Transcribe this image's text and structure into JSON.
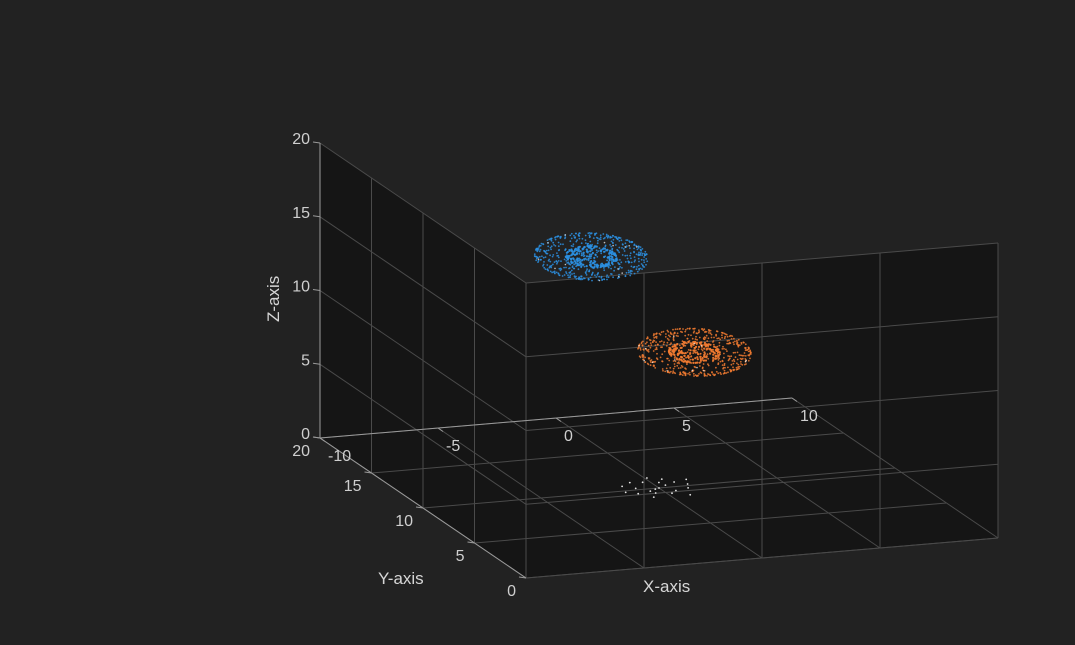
{
  "chart_data": {
    "type": "scatter",
    "projection": "3d",
    "title": "",
    "xlabel": "X-axis",
    "ylabel": "Y-axis",
    "zlabel": "Z-axis",
    "xlim": [
      -10,
      10
    ],
    "ylim": [
      0,
      20
    ],
    "zlim": [
      0,
      20
    ],
    "x_ticks": [
      "-10",
      "-5",
      "0",
      "5",
      "10"
    ],
    "y_ticks": [
      "0",
      "5",
      "10",
      "15",
      "20"
    ],
    "z_ticks": [
      "0",
      "5",
      "10",
      "15",
      "20"
    ],
    "grid": true,
    "series": [
      {
        "kind": "ellipsoid-points",
        "color": "#2b8fe0",
        "center": [
          -2,
          12,
          15
        ],
        "radii": [
          2.2,
          2.2,
          1.2
        ]
      },
      {
        "kind": "ellipsoid-points",
        "color": "#f07a30",
        "center": [
          1.5,
          10,
          9
        ],
        "radii": [
          2.2,
          2.2,
          1.2
        ]
      },
      {
        "kind": "scatter-points",
        "color": "#e8e8e8",
        "points": [
          [
            0,
            10,
            0
          ],
          [
            0.4,
            10.3,
            0
          ],
          [
            -0.5,
            9.7,
            0
          ],
          [
            0.9,
            10.6,
            0
          ],
          [
            -0.9,
            10.2,
            0
          ],
          [
            0.2,
            9.2,
            0
          ],
          [
            -0.3,
            10.9,
            0
          ],
          [
            1.1,
            9.7,
            0
          ],
          [
            -1.1,
            9.5,
            0
          ],
          [
            0.6,
            11.1,
            0
          ],
          [
            -0.7,
            8.9,
            0
          ],
          [
            1.3,
            10.2,
            0
          ],
          [
            -1.3,
            10.6,
            0
          ],
          [
            0.1,
            11.4,
            0
          ],
          [
            0.8,
            8.8,
            0
          ],
          [
            -0.2,
            9.9,
            0
          ],
          [
            0.5,
            9.5,
            0
          ],
          [
            -0.8,
            11.0,
            0
          ],
          [
            1.5,
            10.8,
            0
          ],
          [
            -1.5,
            9.8,
            0
          ],
          [
            0.3,
            10.7,
            0
          ],
          [
            -0.4,
            9.4,
            0
          ]
        ]
      }
    ]
  }
}
